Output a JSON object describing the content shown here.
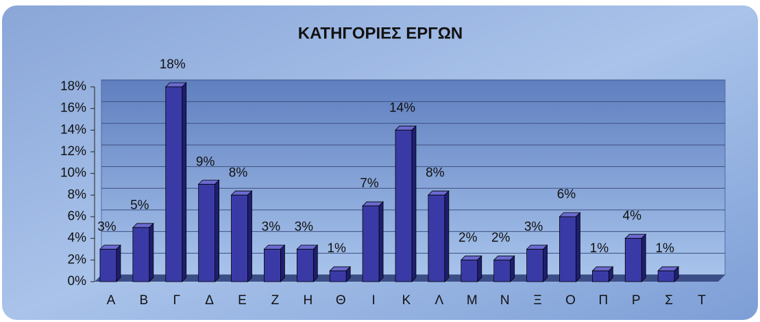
{
  "chart_data": {
    "type": "bar",
    "title": "ΚΑΤΗΓΟΡΙΕΣ ΕΡΓΩΝ",
    "categories": [
      "Α",
      "Β",
      "Γ",
      "Δ",
      "Ε",
      "Ζ",
      "Η",
      "Θ",
      "Ι",
      "Κ",
      "Λ",
      "Μ",
      "Ν",
      "Ξ",
      "Ο",
      "Π",
      "Ρ",
      "Σ",
      "Τ"
    ],
    "values": [
      3,
      5,
      18,
      9,
      8,
      3,
      3,
      1,
      7,
      14,
      8,
      2,
      2,
      3,
      6,
      1,
      4,
      1,
      null
    ],
    "value_labels": [
      "3%",
      "5%",
      "18%",
      "9%",
      "8%",
      "3%",
      "3%",
      "1%",
      "7%",
      "14%",
      "8%",
      "2%",
      "2%",
      "3%",
      "6%",
      "1%",
      "4%",
      "1%",
      null
    ],
    "color": "#3a3aa6",
    "ylim": [
      0,
      18
    ],
    "yticks": [
      {
        "value": 0,
        "label": "0%"
      },
      {
        "value": 2,
        "label": "2%"
      },
      {
        "value": 4,
        "label": "4%"
      },
      {
        "value": 6,
        "label": "6%"
      },
      {
        "value": 8,
        "label": "8%"
      },
      {
        "value": 10,
        "label": "10%"
      },
      {
        "value": 12,
        "label": "12%"
      },
      {
        "value": 14,
        "label": "14%"
      },
      {
        "value": 16,
        "label": "16%"
      },
      {
        "value": 18,
        "label": "18%"
      }
    ],
    "grid": true
  }
}
